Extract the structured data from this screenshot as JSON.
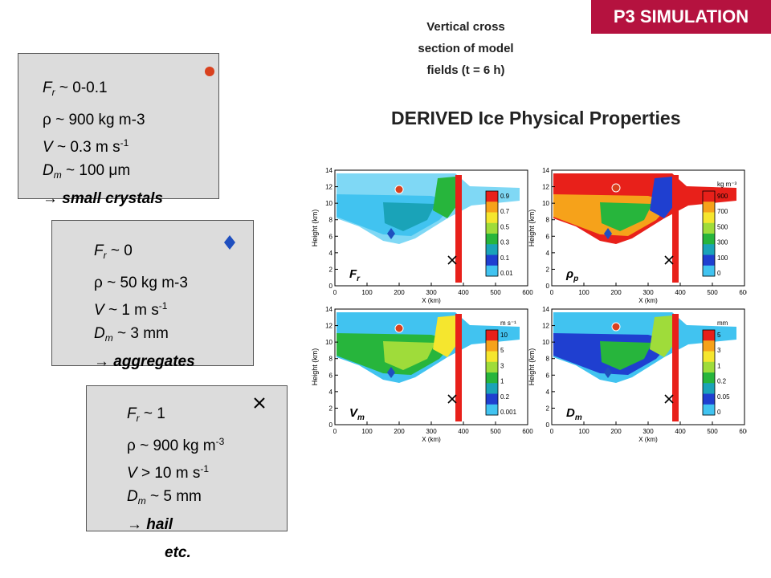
{
  "tag": "P3 SIMULATION",
  "caption": [
    "Vertical cross",
    "section of model",
    "fields (t = 6 h)"
  ],
  "heading": "DERIVED Ice Physical Properties",
  "categories": [
    {
      "marker": "circle-icon",
      "marker_color": "#d9411e",
      "fr": {
        "sym": "F",
        "sub": "r",
        "val": " ~ 0-0.1"
      },
      "rho": {
        "sym": "ρ",
        "val": " ~ 900 kg m-3",
        "sup": ""
      },
      "v": {
        "sym": "V",
        "val": " ~ 0.3 m s",
        "sup": "-1"
      },
      "dm": {
        "sym": "D",
        "sub": "m",
        "val": " ~ 100 μm"
      },
      "result": "small crystals"
    },
    {
      "marker": "diamond-icon",
      "marker_color": "#1f4fbf",
      "fr": {
        "sym": "F",
        "sub": "r",
        "val": " ~ 0"
      },
      "rho": {
        "sym": "ρ",
        "val": " ~ 50 kg m-3",
        "sup": ""
      },
      "v": {
        "sym": "V",
        "val": " ~ 1 m s",
        "sup": "-1"
      },
      "dm": {
        "sym": "D",
        "sub": "m",
        "val": " ~ 3 mm"
      },
      "result": "aggregates"
    },
    {
      "marker": "cross-icon",
      "marker_color": "#000000",
      "fr": {
        "sym": "F",
        "sub": "r",
        "val": " ~ 1"
      },
      "rho": {
        "sym": "ρ",
        "val": " ~ 900 kg m",
        "sup": "-3"
      },
      "v": {
        "sym": "V",
        "val": " > 10 m s",
        "sup": "-1"
      },
      "dm": {
        "sym": "D",
        "sub": "m",
        "val": " ~ 5 mm"
      },
      "result": "hail"
    }
  ],
  "etc": "etc.",
  "arrow": "→",
  "plots": {
    "xlabel": "X (km)",
    "ylabel": "Height (km)",
    "xticks": [
      "0",
      "100",
      "200",
      "300",
      "400",
      "500",
      "600"
    ],
    "yticks": [
      "0",
      "2",
      "4",
      "6",
      "8",
      "10",
      "12",
      "14"
    ],
    "panels": [
      {
        "label": "F",
        "label_sub": "r",
        "unit": "",
        "cbar": [
          "0.9",
          "0.7",
          "0.5",
          "0.3",
          "0.1",
          "0.01"
        ]
      },
      {
        "label": "ρ",
        "label_sub": "p",
        "unit": "kg m⁻³",
        "cbar": [
          "900",
          "700",
          "500",
          "300",
          "100",
          "0"
        ]
      },
      {
        "label": "V",
        "label_sub": "m",
        "unit": "m s⁻¹",
        "cbar": [
          "10",
          "5",
          "3",
          "1",
          "0.2",
          "0.001"
        ]
      },
      {
        "label": "D",
        "label_sub": "m",
        "unit": "mm",
        "cbar": [
          "5",
          "3",
          "1",
          "0.2",
          "0.05",
          "0"
        ]
      }
    ]
  }
}
